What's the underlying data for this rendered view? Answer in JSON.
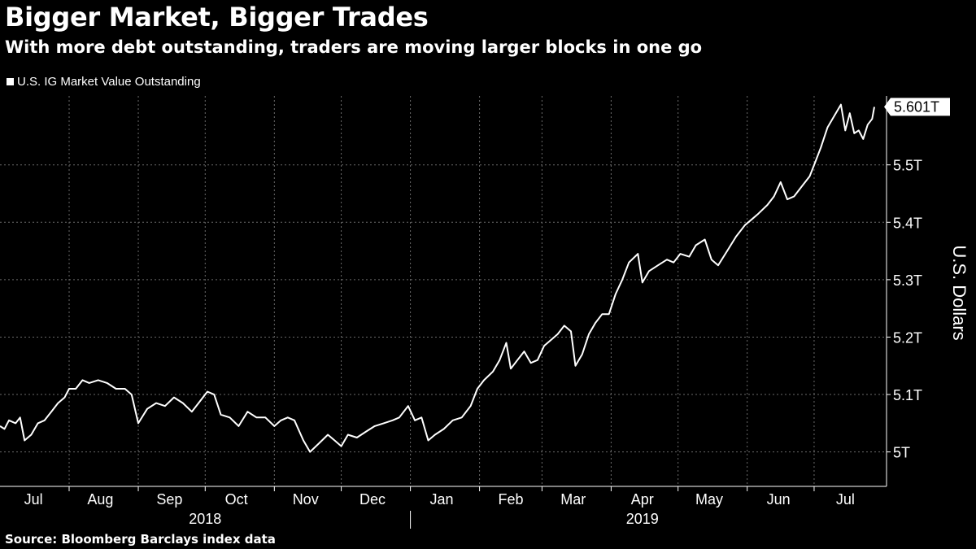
{
  "header": {
    "title": "Bigger Market, Bigger Trades",
    "subtitle": "With more debt outstanding, traders are moving larger blocks in one go"
  },
  "legend": {
    "label": "U.S. IG Market Value Outstanding"
  },
  "footer": {
    "source": "Source: Bloomberg Barclays index data"
  },
  "colors": {
    "background": "#000000",
    "line": "#ffffff",
    "grid": "#6a6a6a"
  },
  "chart_data": {
    "type": "line",
    "title": "Bigger Market, Bigger Trades",
    "subtitle": "With more debt outstanding, traders are moving larger blocks in one go",
    "ylabel": "U.S. Dollars",
    "ylim": [
      4.94,
      5.62
    ],
    "yticks": [
      {
        "value": 5.0,
        "label": "5T"
      },
      {
        "value": 5.1,
        "label": "5.1T"
      },
      {
        "value": 5.2,
        "label": "5.2T"
      },
      {
        "value": 5.3,
        "label": "5.3T"
      },
      {
        "value": 5.4,
        "label": "5.4T"
      },
      {
        "value": 5.5,
        "label": "5.5T"
      }
    ],
    "last_value_label": "5.601T",
    "last_value": 5.601,
    "grid": true,
    "legend_position": "top-left",
    "x_unit": "date",
    "xlim": [
      "2018-07-01",
      "2019-07-28"
    ],
    "month_labels": [
      {
        "label": "Jul",
        "date": "2018-07-16"
      },
      {
        "label": "Aug",
        "date": "2018-08-15"
      },
      {
        "label": "Sep",
        "date": "2018-09-15"
      },
      {
        "label": "Oct",
        "date": "2018-10-15"
      },
      {
        "label": "Nov",
        "date": "2018-11-15"
      },
      {
        "label": "Dec",
        "date": "2018-12-15"
      },
      {
        "label": "Jan",
        "date": "2019-01-15"
      },
      {
        "label": "Feb",
        "date": "2019-02-15"
      },
      {
        "label": "Mar",
        "date": "2019-03-15"
      },
      {
        "label": "Apr",
        "date": "2019-04-15"
      },
      {
        "label": "May",
        "date": "2019-05-15"
      },
      {
        "label": "Jun",
        "date": "2019-06-15"
      },
      {
        "label": "Jul",
        "date": "2019-07-15"
      }
    ],
    "month_boundaries": [
      "2018-08-01",
      "2018-09-01",
      "2018-10-01",
      "2018-11-01",
      "2018-12-01",
      "2019-01-01",
      "2019-02-01",
      "2019-03-01",
      "2019-04-01",
      "2019-05-01",
      "2019-06-01",
      "2019-07-01"
    ],
    "year_labels": [
      {
        "label": "2018",
        "date": "2018-10-01"
      },
      {
        "label": "2019",
        "date": "2019-04-15"
      }
    ],
    "year_divider": "2019-01-01",
    "series": [
      {
        "name": "U.S. IG Market Value Outstanding",
        "points": [
          [
            "2018-07-01",
            5.045
          ],
          [
            "2018-07-03",
            5.04
          ],
          [
            "2018-07-05",
            5.055
          ],
          [
            "2018-07-08",
            5.05
          ],
          [
            "2018-07-10",
            5.06
          ],
          [
            "2018-07-12",
            5.02
          ],
          [
            "2018-07-15",
            5.03
          ],
          [
            "2018-07-18",
            5.05
          ],
          [
            "2018-07-21",
            5.055
          ],
          [
            "2018-07-24",
            5.07
          ],
          [
            "2018-07-27",
            5.085
          ],
          [
            "2018-07-30",
            5.095
          ],
          [
            "2018-08-01",
            5.11
          ],
          [
            "2018-08-04",
            5.11
          ],
          [
            "2018-08-07",
            5.125
          ],
          [
            "2018-08-10",
            5.12
          ],
          [
            "2018-08-14",
            5.125
          ],
          [
            "2018-08-18",
            5.12
          ],
          [
            "2018-08-22",
            5.11
          ],
          [
            "2018-08-26",
            5.11
          ],
          [
            "2018-08-29",
            5.1
          ],
          [
            "2018-09-01",
            5.05
          ],
          [
            "2018-09-05",
            5.075
          ],
          [
            "2018-09-09",
            5.085
          ],
          [
            "2018-09-13",
            5.08
          ],
          [
            "2018-09-17",
            5.095
          ],
          [
            "2018-09-21",
            5.085
          ],
          [
            "2018-09-25",
            5.07
          ],
          [
            "2018-09-28",
            5.085
          ],
          [
            "2018-10-02",
            5.105
          ],
          [
            "2018-10-05",
            5.1
          ],
          [
            "2018-10-08",
            5.065
          ],
          [
            "2018-10-12",
            5.06
          ],
          [
            "2018-10-16",
            5.045
          ],
          [
            "2018-10-20",
            5.07
          ],
          [
            "2018-10-24",
            5.06
          ],
          [
            "2018-10-28",
            5.06
          ],
          [
            "2018-11-01",
            5.045
          ],
          [
            "2018-11-04",
            5.055
          ],
          [
            "2018-11-07",
            5.06
          ],
          [
            "2018-11-10",
            5.055
          ],
          [
            "2018-11-14",
            5.02
          ],
          [
            "2018-11-17",
            5.0
          ],
          [
            "2018-11-21",
            5.015
          ],
          [
            "2018-11-25",
            5.03
          ],
          [
            "2018-11-28",
            5.02
          ],
          [
            "2018-12-01",
            5.01
          ],
          [
            "2018-12-04",
            5.03
          ],
          [
            "2018-12-08",
            5.025
          ],
          [
            "2018-12-12",
            5.035
          ],
          [
            "2018-12-16",
            5.045
          ],
          [
            "2018-12-20",
            5.05
          ],
          [
            "2018-12-24",
            5.055
          ],
          [
            "2018-12-27",
            5.06
          ],
          [
            "2018-12-31",
            5.08
          ],
          [
            "2019-01-03",
            5.055
          ],
          [
            "2019-01-06",
            5.06
          ],
          [
            "2019-01-09",
            5.02
          ],
          [
            "2019-01-12",
            5.03
          ],
          [
            "2019-01-16",
            5.04
          ],
          [
            "2019-01-20",
            5.055
          ],
          [
            "2019-01-24",
            5.06
          ],
          [
            "2019-01-28",
            5.08
          ],
          [
            "2019-01-31",
            5.11
          ],
          [
            "2019-02-03",
            5.125
          ],
          [
            "2019-02-07",
            5.14
          ],
          [
            "2019-02-10",
            5.16
          ],
          [
            "2019-02-13",
            5.19
          ],
          [
            "2019-02-15",
            5.145
          ],
          [
            "2019-02-18",
            5.16
          ],
          [
            "2019-02-21",
            5.175
          ],
          [
            "2019-02-24",
            5.155
          ],
          [
            "2019-02-27",
            5.16
          ],
          [
            "2019-03-02",
            5.185
          ],
          [
            "2019-03-05",
            5.195
          ],
          [
            "2019-03-08",
            5.205
          ],
          [
            "2019-03-11",
            5.22
          ],
          [
            "2019-03-14",
            5.21
          ],
          [
            "2019-03-16",
            5.15
          ],
          [
            "2019-03-19",
            5.17
          ],
          [
            "2019-03-22",
            5.205
          ],
          [
            "2019-03-25",
            5.225
          ],
          [
            "2019-03-28",
            5.24
          ],
          [
            "2019-03-31",
            5.24
          ],
          [
            "2019-04-03",
            5.275
          ],
          [
            "2019-04-06",
            5.3
          ],
          [
            "2019-04-09",
            5.33
          ],
          [
            "2019-04-13",
            5.345
          ],
          [
            "2019-04-15",
            5.295
          ],
          [
            "2019-04-18",
            5.315
          ],
          [
            "2019-04-22",
            5.325
          ],
          [
            "2019-04-26",
            5.335
          ],
          [
            "2019-04-29",
            5.33
          ],
          [
            "2019-05-02",
            5.345
          ],
          [
            "2019-05-06",
            5.34
          ],
          [
            "2019-05-09",
            5.36
          ],
          [
            "2019-05-13",
            5.37
          ],
          [
            "2019-05-16",
            5.335
          ],
          [
            "2019-05-19",
            5.325
          ],
          [
            "2019-05-23",
            5.35
          ],
          [
            "2019-05-27",
            5.375
          ],
          [
            "2019-05-31",
            5.395
          ],
          [
            "2019-06-03",
            5.405
          ],
          [
            "2019-06-06",
            5.415
          ],
          [
            "2019-06-10",
            5.43
          ],
          [
            "2019-06-13",
            5.445
          ],
          [
            "2019-06-16",
            5.47
          ],
          [
            "2019-06-19",
            5.44
          ],
          [
            "2019-06-22",
            5.445
          ],
          [
            "2019-06-26",
            5.465
          ],
          [
            "2019-06-29",
            5.48
          ],
          [
            "2019-07-01",
            5.5
          ],
          [
            "2019-07-04",
            5.53
          ],
          [
            "2019-07-07",
            5.565
          ],
          [
            "2019-07-10",
            5.585
          ],
          [
            "2019-07-13",
            5.605
          ],
          [
            "2019-07-15",
            5.56
          ],
          [
            "2019-07-17",
            5.59
          ],
          [
            "2019-07-19",
            5.555
          ],
          [
            "2019-07-21",
            5.56
          ],
          [
            "2019-07-23",
            5.545
          ],
          [
            "2019-07-25",
            5.57
          ],
          [
            "2019-07-27",
            5.58
          ],
          [
            "2019-07-28",
            5.601
          ]
        ]
      }
    ]
  }
}
